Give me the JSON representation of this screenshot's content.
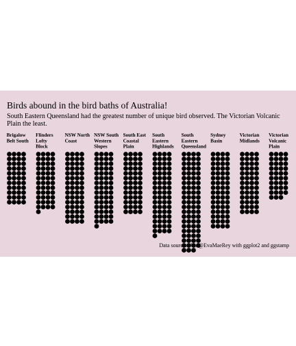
{
  "title": "Birds abound in the bird baths of Australia!",
  "subtitle": "South Eastern Queensland had the greatest number of unique bird observed. The Victorian Volcanic Plain the least.",
  "caption": "Data source:  Viz: @EvaMaeRey with ggplot2 and ggstamp",
  "colors": {
    "background": "#e8d5de",
    "dot": "#000000"
  },
  "chart_data": {
    "type": "waffle",
    "dots_per_row": 4,
    "categories": [
      "Brigalow Belt South",
      "Flinders Lofty Block",
      "NSW North Coast",
      "NSW South Western Slopes",
      "South East Coastal Plain",
      "South Eastern Highlands",
      "South Eastern Queensland",
      "Sydney Basin",
      "Victorian Midlands",
      "Victorian Volcanic Plain"
    ],
    "labels": [
      [
        "Brigalow",
        "Belt South"
      ],
      [
        "Flinders",
        "Lofty",
        "Block"
      ],
      [
        "NSW North",
        "Coast"
      ],
      [
        "NSW South",
        "Western",
        "Slopes"
      ],
      [
        "South East",
        "Coastal",
        "Plain"
      ],
      [
        "South",
        "Eastern",
        "Highlands"
      ],
      [
        "South",
        "Eastern",
        "Queensland"
      ],
      [
        "Sydney",
        "Basin"
      ],
      [
        "Victorian",
        "Midlands"
      ],
      [
        "Victorian",
        "Volcanic",
        "Plain"
      ]
    ],
    "values": [
      44,
      49,
      60,
      61,
      52,
      69,
      83,
      64,
      52,
      39
    ]
  }
}
